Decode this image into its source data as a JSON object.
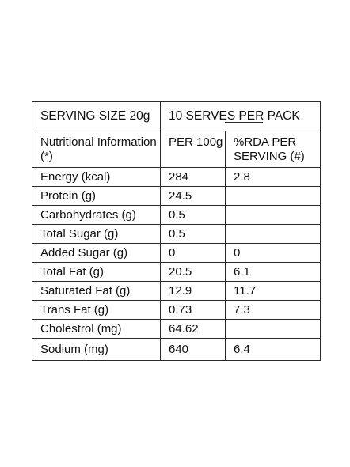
{
  "header": {
    "serving_size": "SERVING SIZE  20g",
    "serves_per_pack": "10 SERVES PER PACK"
  },
  "columns": {
    "nutrient": "Nutritional Information (*)",
    "per_100g": "PER 100g",
    "rda": "%RDA PER SERVING (#)"
  },
  "rows": [
    {
      "name": "Energy (kcal)",
      "per100": "284",
      "rda": "2.8"
    },
    {
      "name": "Protein (g)",
      "per100": "24.5",
      "rda": ""
    },
    {
      "name": "Carbohydrates (g)",
      "per100": "0.5",
      "rda": ""
    },
    {
      "name": "Total Sugar (g)",
      "per100": "0.5",
      "rda": ""
    },
    {
      "name": "Added Sugar (g)",
      "per100": "0",
      "rda": "0"
    },
    {
      "name": "Total Fat (g)",
      "per100": "20.5",
      "rda": "6.1"
    },
    {
      "name": "Saturated Fat (g)",
      "per100": "12.9",
      "rda": "11.7"
    },
    {
      "name": "Trans Fat (g)",
      "per100": "0.73",
      "rda": "7.3"
    },
    {
      "name": "Cholestrol (mg)",
      "per100": "64.62",
      "rda": ""
    },
    {
      "name": "Sodium (mg)",
      "per100": "640",
      "rda": "6.4"
    }
  ]
}
